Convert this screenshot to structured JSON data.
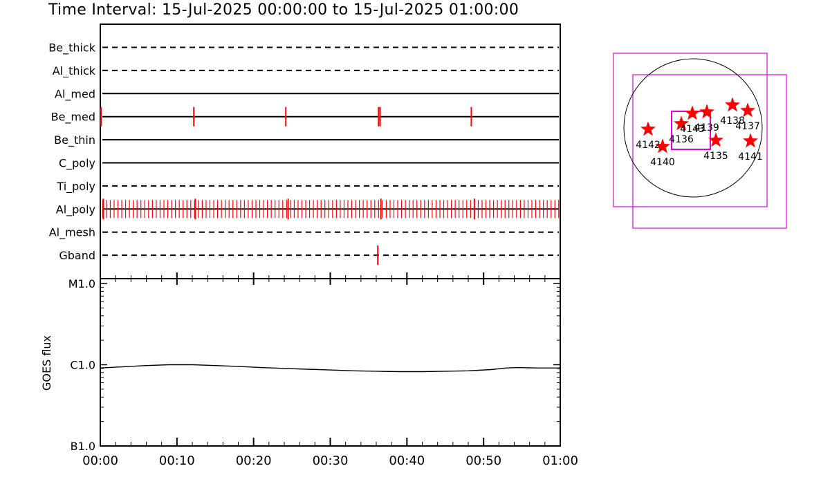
{
  "title": "Time Interval: 15-Jul-2025 00:00:00 to 15-Jul-2025 01:00:00",
  "chart_data": [
    {
      "type": "event-timeline",
      "title": "",
      "x_range_minutes": [
        0,
        60
      ],
      "rows": [
        {
          "label": "Be_thick",
          "style": "dashed",
          "events": []
        },
        {
          "label": "Al_thick",
          "style": "dashed",
          "events": []
        },
        {
          "label": "Al_med",
          "style": "solid",
          "events": []
        },
        {
          "label": "Be_med",
          "style": "solid",
          "events": [
            0.1,
            12.2,
            24.2,
            36.3,
            36.5,
            48.4
          ]
        },
        {
          "label": "Be_thin",
          "style": "solid",
          "events": []
        },
        {
          "label": "C_poly",
          "style": "solid",
          "events": []
        },
        {
          "label": "Ti_poly",
          "style": "dashed",
          "events": []
        },
        {
          "label": "Al_poly",
          "style": "solid",
          "events_regular": {
            "start": 0.3,
            "end": 59.9,
            "step": 0.5
          },
          "events_major": [
            0.4,
            12.4,
            24.5,
            36.6,
            48.8
          ]
        },
        {
          "label": "Al_mesh",
          "style": "dashed",
          "events": []
        },
        {
          "label": "Gband",
          "style": "dashed",
          "events": [
            36.2
          ]
        }
      ]
    },
    {
      "type": "line",
      "title": "",
      "ylabel": "GOES flux",
      "yscale": "log",
      "ylim": [
        "B1.0",
        "M1.0"
      ],
      "yticks": [
        "M1.0",
        "C1.0",
        "B1.0"
      ],
      "xlim": [
        "00:00",
        "01:00"
      ],
      "xticks": [
        "00:00",
        "00:10",
        "00:20",
        "00:30",
        "00:40",
        "00:50",
        "01:00"
      ],
      "series": [
        {
          "name": "",
          "x_minutes": [
            0,
            3,
            6,
            9,
            12,
            15,
            18,
            21,
            24,
            27,
            30,
            33,
            36,
            39,
            42,
            45,
            48,
            51,
            53,
            54.5,
            57,
            60
          ],
          "y_log_decades": [
            -0.04,
            -0.025,
            -0.01,
            0.0,
            0.0,
            -0.01,
            -0.02,
            -0.035,
            -0.045,
            -0.055,
            -0.065,
            -0.075,
            -0.08,
            -0.085,
            -0.085,
            -0.08,
            -0.075,
            -0.06,
            -0.04,
            -0.035,
            -0.04,
            -0.04
          ]
        }
      ]
    },
    {
      "type": "scatter",
      "title": "",
      "solar_disk": true,
      "points": [
        {
          "label": "4136",
          "x": -0.17,
          "y": 0.06
        },
        {
          "label": "4135",
          "x": 0.33,
          "y": -0.18
        },
        {
          "label": "4137",
          "x": 0.79,
          "y": 0.25
        },
        {
          "label": "4138",
          "x": 0.57,
          "y": 0.33
        },
        {
          "label": "4139",
          "x": 0.2,
          "y": 0.23
        },
        {
          "label": "4140",
          "x": -0.44,
          "y": -0.27
        },
        {
          "label": "4141",
          "x": 0.83,
          "y": -0.19
        },
        {
          "label": "4142",
          "x": -0.65,
          "y": -0.02
        },
        {
          "label": "4143",
          "x": -0.01,
          "y": 0.21
        }
      ]
    }
  ],
  "colors": {
    "axis": "#000000",
    "event": "#ff0000",
    "marker": "#ff0000",
    "box": "#e000e0",
    "line": "#000000"
  }
}
